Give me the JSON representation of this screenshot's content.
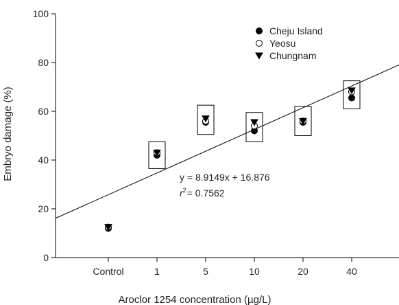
{
  "chart_data": {
    "type": "scatter",
    "xlabel": "Aroclor 1254 concentration (µg/L)",
    "ylabel": "Embryo damage (%)",
    "categories": [
      "Control",
      "1",
      "5",
      "10",
      "20",
      "40"
    ],
    "ylim": [
      0,
      100
    ],
    "yticks": [
      0,
      20,
      40,
      60,
      80,
      100
    ],
    "grid": false,
    "legend_position": "top-right",
    "series": [
      {
        "name": "Cheju Island",
        "marker": "filled-circle",
        "values": [
          12,
          42,
          55.5,
          52,
          55.5,
          65.5
        ]
      },
      {
        "name": "Yeosu",
        "marker": "open-circle",
        "values": [
          12.5,
          43,
          56,
          54,
          56,
          68
        ]
      },
      {
        "name": "Chungnam",
        "marker": "filled-triangle-down",
        "values": [
          12.5,
          43,
          57,
          55.5,
          56,
          68.5
        ]
      }
    ],
    "boxes": [
      {
        "category": "1",
        "low": 36.5,
        "high": 47.5
      },
      {
        "category": "5",
        "low": 50.5,
        "high": 62.5
      },
      {
        "category": "10",
        "low": 47.5,
        "high": 59.5
      },
      {
        "category": "20",
        "low": 50,
        "high": 62
      },
      {
        "category": "40",
        "low": 61,
        "high": 72.5
      }
    ],
    "trendline": {
      "slope": 8.9149,
      "intercept": 16.876
    },
    "equation": "y = 8.9149x + 16.876",
    "r2_symbol": "r",
    "r2_sup": "2",
    "r2_value": "= 0.7562"
  }
}
